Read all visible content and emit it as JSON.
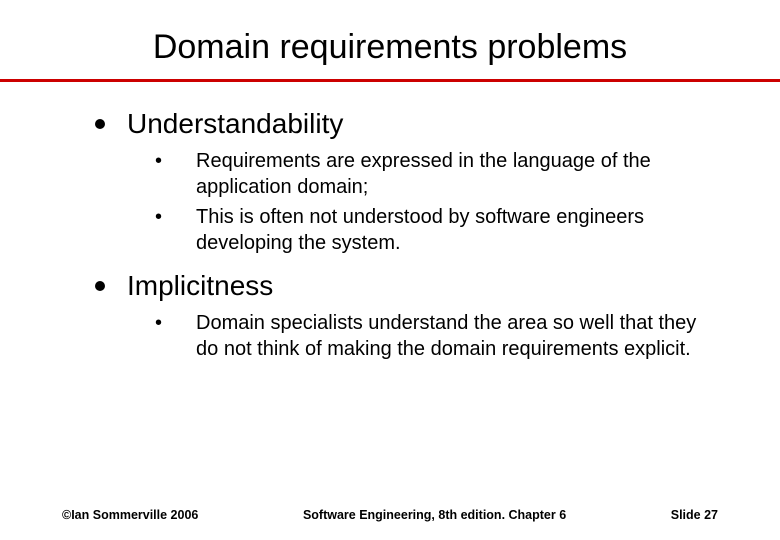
{
  "colors": {
    "rule": "#cc0000",
    "text": "#000000",
    "background": "#ffffff"
  },
  "typography": {
    "title_fontsize": 34,
    "l1_fontsize": 28,
    "l2_fontsize": 20,
    "footer_fontsize": 12.5,
    "font_family": "Arial"
  },
  "title": "Domain requirements problems",
  "bullets": [
    {
      "label": "Understandability",
      "subs": [
        "Requirements are expressed in the language of the application domain;",
        "This is often not understood by software engineers developing the system."
      ]
    },
    {
      "label": "Implicitness",
      "subs": [
        "Domain specialists understand the area so well that they do not think of making the domain requirements explicit."
      ]
    }
  ],
  "footer": {
    "left": "©Ian Sommerville 2006",
    "center": "Software Engineering, 8th edition. Chapter 6",
    "right": "Slide 27"
  }
}
